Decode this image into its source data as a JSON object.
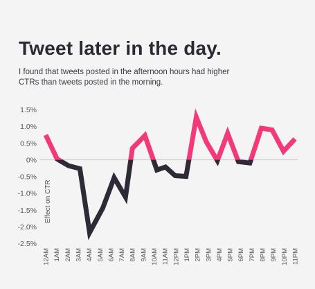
{
  "title": "Tweet later in the day.",
  "subtitle": "I found that tweets posted in the afternoon hours had higher CTRs than tweets posted in the morning.",
  "chart_data": {
    "type": "line",
    "title": "Tweet later in the day.",
    "ylabel": "Effect on CTR",
    "xlabel": "",
    "ylim": [
      -2.5,
      1.5
    ],
    "yticks": [
      "1.5%",
      "1.0%",
      "0.5%",
      "0%",
      "-0.5%",
      "-1.0%",
      "-1.5%",
      "-2.0%",
      "-2.5%"
    ],
    "categories": [
      "12AM",
      "1AM",
      "2AM",
      "3AM",
      "4AM",
      "5AM",
      "6AM",
      "7AM",
      "8AM",
      "9AM",
      "10AM",
      "11AM",
      "12PM",
      "1PM",
      "2PM",
      "3PM",
      "4PM",
      "5PM",
      "6PM",
      "7PM",
      "8PM",
      "9PM",
      "10PM",
      "11PM"
    ],
    "x_positions": [
      0,
      1,
      2,
      3,
      3.85,
      5,
      6,
      7,
      7.6,
      8.7,
      9.75,
      10.5,
      11.35,
      12.3,
      13.2,
      14.1,
      15.05,
      15.95,
      16.9,
      17.9,
      18.9,
      19.85,
      20.85,
      21.85
    ],
    "values": [
      0.74,
      0.02,
      -0.18,
      -0.27,
      -2.18,
      -1.45,
      -0.54,
      -1.12,
      0.34,
      0.72,
      -0.31,
      -0.22,
      -0.48,
      -0.5,
      1.27,
      0.52,
      -0.03,
      0.79,
      -0.06,
      -0.1,
      0.94,
      0.89,
      0.25,
      0.62
    ],
    "positive_color": "#f23a7a",
    "negative_color": "#2e2b36",
    "zero_line": true,
    "grid": false
  }
}
